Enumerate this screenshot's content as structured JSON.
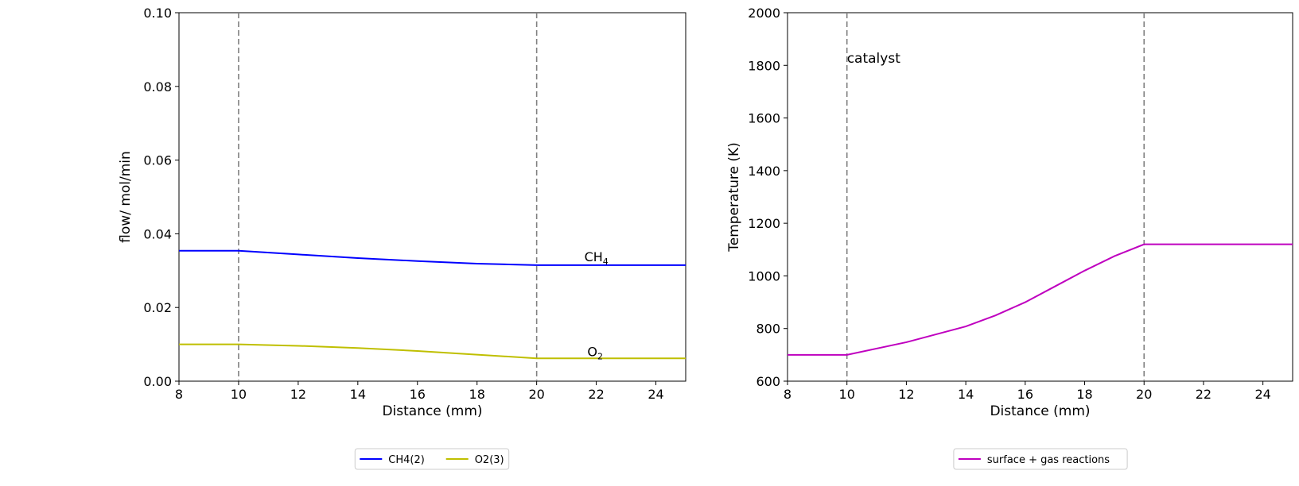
{
  "chart_data": [
    {
      "type": "line",
      "xlabel": "Distance (mm)",
      "ylabel": "flow/ mol/min",
      "xlim": [
        8,
        25
      ],
      "ylim": [
        0,
        0.1
      ],
      "xticks": [
        8,
        10,
        12,
        14,
        16,
        18,
        20,
        22,
        24
      ],
      "yticks": [
        "0.00",
        "0.02",
        "0.04",
        "0.06",
        "0.08",
        "0.10"
      ],
      "grid": false,
      "vlines": [
        10,
        20
      ],
      "series": [
        {
          "name": "CH4(2)",
          "label": "CH",
          "label_sub": "4",
          "label_at": [
            21.6,
            0.0325
          ],
          "color": "#0000ff",
          "x": [
            8,
            10,
            12,
            14,
            16,
            18,
            20,
            25
          ],
          "y": [
            0.0354,
            0.0354,
            0.0344,
            0.0334,
            0.0326,
            0.0319,
            0.0315,
            0.0315
          ]
        },
        {
          "name": "O2(3)",
          "label": "O",
          "label_sub": "2",
          "label_at": [
            21.7,
            0.0068
          ],
          "color": "#bfbf00",
          "x": [
            8,
            10,
            12,
            14,
            16,
            18,
            20,
            25
          ],
          "y": [
            0.01,
            0.01,
            0.0096,
            0.009,
            0.0082,
            0.0072,
            0.0062,
            0.0062
          ]
        }
      ],
      "legend": {
        "position": "bottom-center",
        "entries": [
          "CH4(2)",
          "O2(3)"
        ]
      }
    },
    {
      "type": "line",
      "xlabel": "Distance (mm)",
      "ylabel": "Temperature (K)",
      "xlim": [
        8,
        25
      ],
      "ylim": [
        600,
        2000
      ],
      "xticks": [
        8,
        10,
        12,
        14,
        16,
        18,
        20,
        22,
        24
      ],
      "yticks": [
        "600",
        "800",
        "1000",
        "1200",
        "1400",
        "1600",
        "1800",
        "2000"
      ],
      "grid": false,
      "vlines": [
        10,
        20
      ],
      "annotation": {
        "text": "catalyst",
        "at": [
          10,
          1810
        ]
      },
      "series": [
        {
          "name": "surface + gas reactions",
          "color": "#bf00bf",
          "x": [
            8,
            10,
            12,
            14,
            15,
            16,
            17,
            18,
            19,
            20,
            25
          ],
          "y": [
            700,
            700,
            748,
            808,
            850,
            900,
            960,
            1020,
            1075,
            1120,
            1120
          ]
        }
      ],
      "legend": {
        "position": "bottom-center",
        "entries": [
          "surface + gas reactions"
        ]
      }
    }
  ]
}
